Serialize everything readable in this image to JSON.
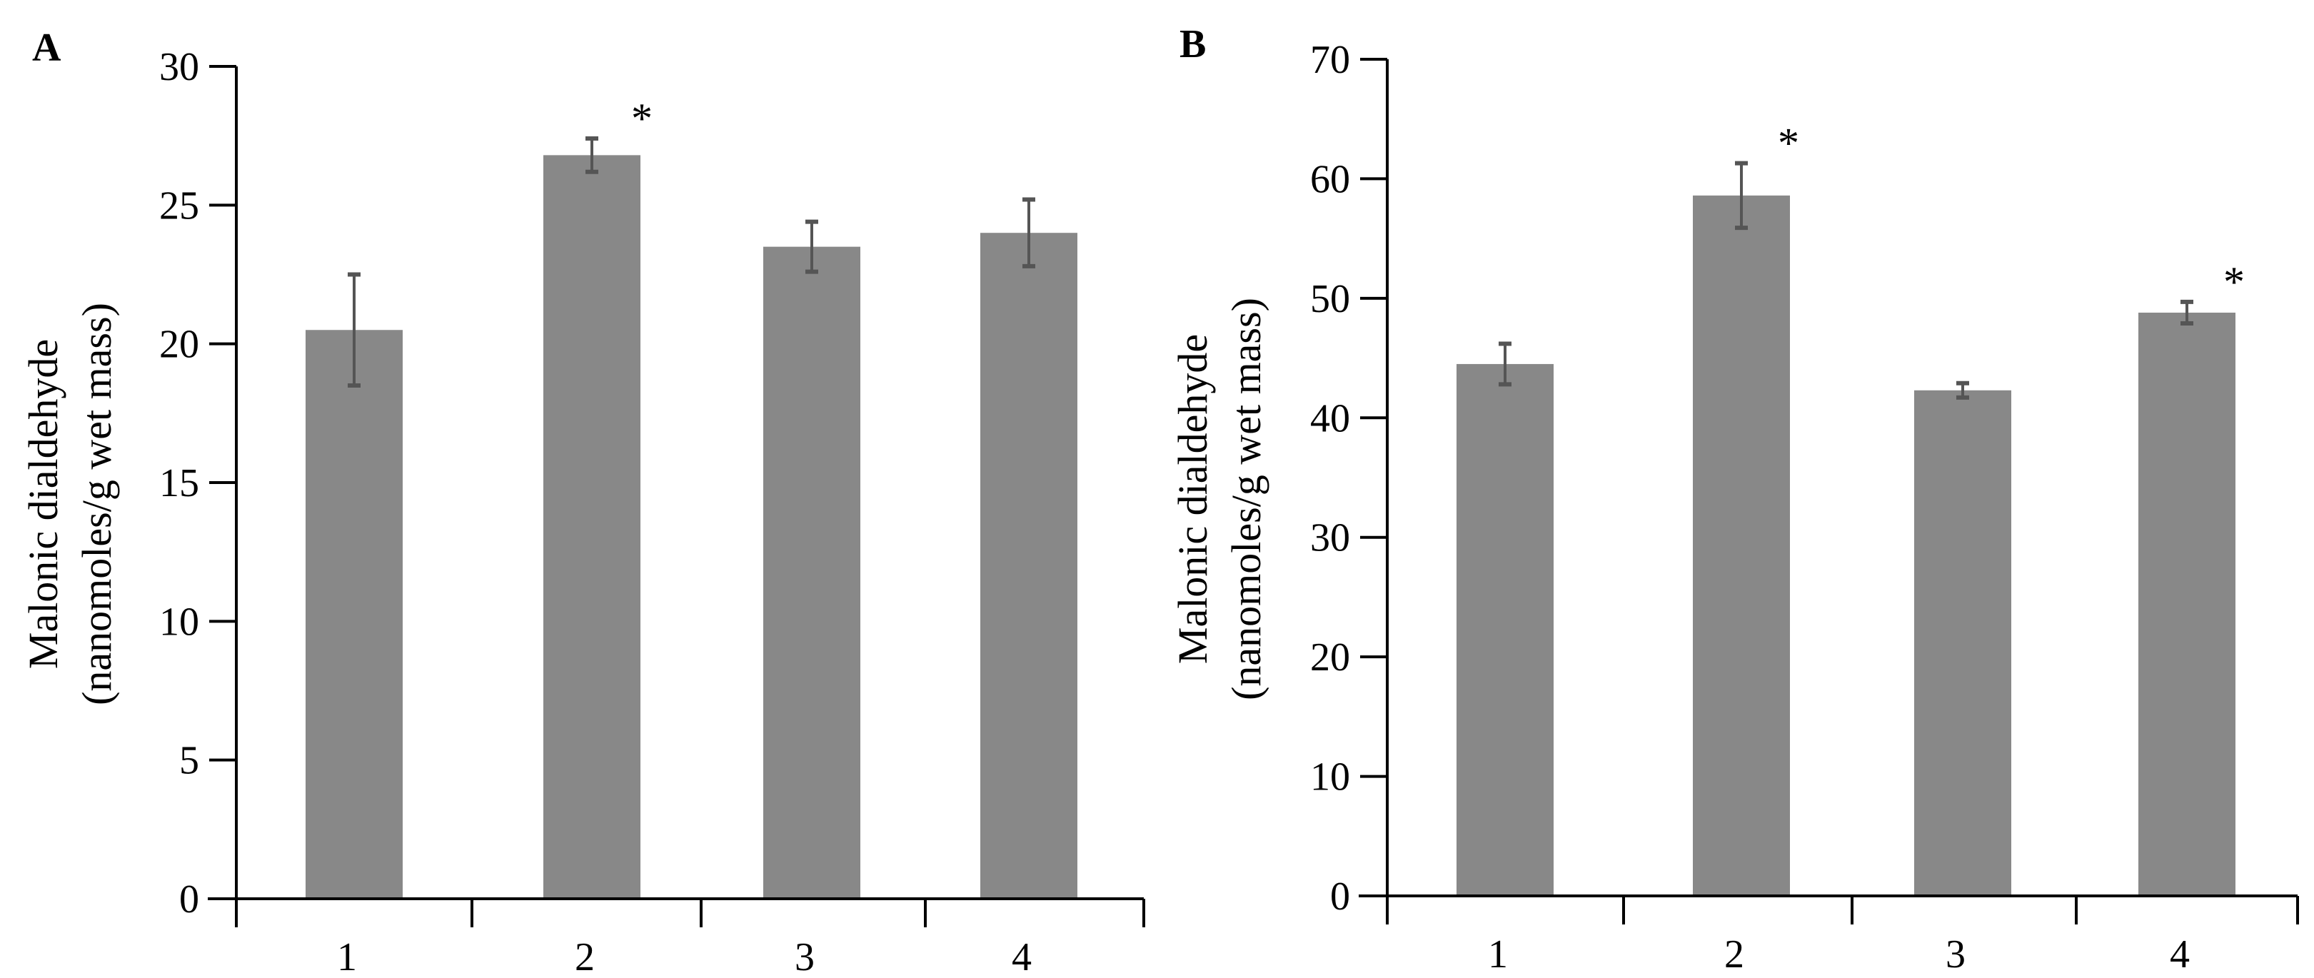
{
  "colors": {
    "bar": "#888888",
    "error_bar": "#555555",
    "axis": "#000000"
  },
  "chart_data": [
    {
      "panel": "A",
      "type": "bar",
      "title": "",
      "xlabel": "",
      "ylabel": "Malonic dialdehyde (nanomoles/g wet mass)",
      "ylabel_lines": [
        "Malonic dialdehyde",
        "(nanomoles/g wet mass)"
      ],
      "categories": [
        "1",
        "2",
        "3",
        "4"
      ],
      "values": [
        20.5,
        26.8,
        23.5,
        24.0
      ],
      "errors": [
        2.0,
        0.6,
        0.9,
        1.2
      ],
      "significant": [
        false,
        true,
        false,
        false
      ],
      "annotation": "*",
      "ylim": [
        0,
        30
      ],
      "yticks": [
        0,
        5,
        10,
        15,
        20,
        25,
        30
      ],
      "grid": false,
      "legend": null
    },
    {
      "panel": "B",
      "type": "bar",
      "title": "",
      "xlabel": "",
      "ylabel": "Malonic dialdehyde (nanomoles/g wet mass)",
      "ylabel_lines": [
        "Malonic dialdehyde",
        "(nanomoles/g wet mass)"
      ],
      "categories": [
        "1",
        "2",
        "3",
        "4"
      ],
      "values": [
        44.5,
        58.6,
        42.3,
        48.8
      ],
      "errors": [
        1.7,
        2.7,
        0.6,
        0.9
      ],
      "significant": [
        false,
        true,
        false,
        true
      ],
      "annotation": "*",
      "ylim": [
        0,
        70
      ],
      "yticks": [
        0,
        10,
        20,
        30,
        40,
        50,
        60,
        70
      ],
      "grid": false,
      "legend": null
    }
  ]
}
